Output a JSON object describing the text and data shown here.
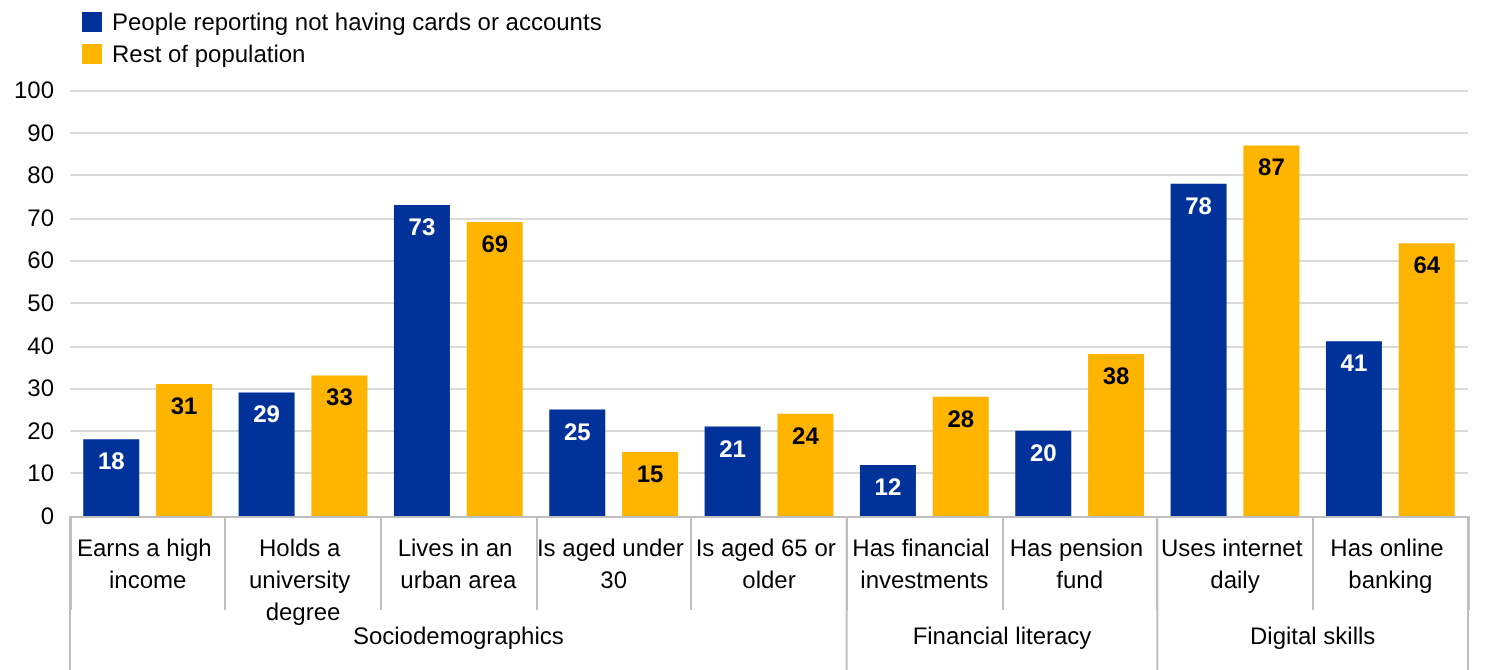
{
  "chart_data": {
    "type": "bar",
    "categories": [
      "Earns a high income",
      "Holds a university degree",
      "Lives in an urban area",
      "Is aged under 30",
      "Is aged 65 or older",
      "Has financial investments",
      "Has pension fund",
      "Uses internet daily",
      "Has online banking"
    ],
    "series": [
      {
        "name": "People reporting not having cards or accounts",
        "color": "#003299",
        "values": [
          18,
          29,
          73,
          25,
          21,
          12,
          20,
          78,
          41
        ]
      },
      {
        "name": "Rest of population",
        "color": "#ffb400",
        "values": [
          31,
          33,
          69,
          15,
          24,
          28,
          38,
          87,
          64
        ]
      }
    ],
    "ylim": [
      0,
      100
    ],
    "yticks": [
      0,
      10,
      20,
      30,
      40,
      50,
      60,
      70,
      80,
      90,
      100
    ],
    "grid": "y",
    "legend": "top left",
    "data_labels": true,
    "annotations": [
      "Sociodemographics",
      "Financial literacy",
      "Digital skills"
    ]
  }
}
